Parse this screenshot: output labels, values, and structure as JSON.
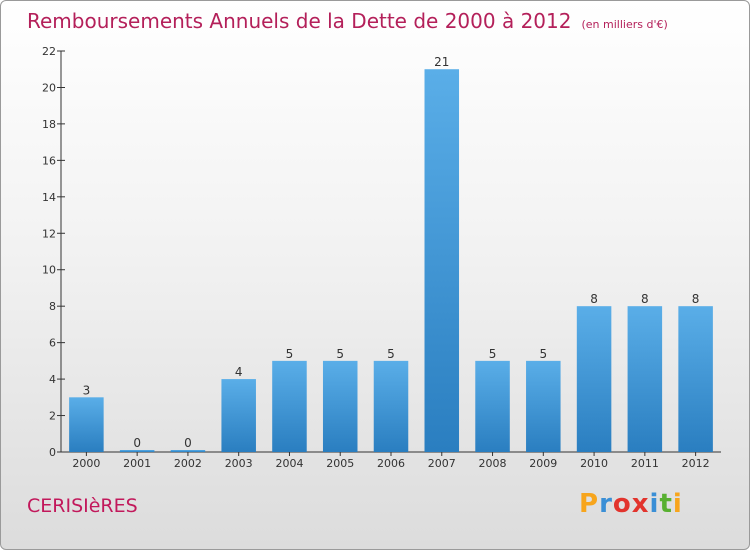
{
  "header": {
    "title": "Remboursements Annuels de la Dette de 2000 à 2012",
    "unit": "(en milliers d'€)"
  },
  "footer": {
    "commune": "CERISIèRES",
    "logo_letters": [
      "P",
      "r",
      "o",
      "x",
      "i",
      "t",
      "i"
    ],
    "logo_colors": [
      "#f7a51c",
      "#3a8fd6",
      "#e2342d",
      "#e2342d",
      "#3a8fd6",
      "#58b031",
      "#f7a51c"
    ]
  },
  "colors": {
    "bar_top": "#5aaee8",
    "bar_bottom": "#2a7ec0",
    "axis": "#333333"
  },
  "chart_data": {
    "type": "bar",
    "title": "Remboursements Annuels de la Dette de 2000 à 2012",
    "subtitle": "(en milliers d'€)",
    "categories": [
      "2000",
      "2001",
      "2002",
      "2003",
      "2004",
      "2005",
      "2006",
      "2007",
      "2008",
      "2009",
      "2010",
      "2011",
      "2012"
    ],
    "values": [
      3,
      0,
      0,
      4,
      5,
      5,
      5,
      21,
      5,
      5,
      8,
      8,
      8
    ],
    "ylim": [
      0,
      22
    ],
    "yticks": [
      0,
      2,
      4,
      6,
      8,
      10,
      12,
      14,
      16,
      18,
      20,
      22
    ],
    "xlabel": "",
    "ylabel": "",
    "grid": false,
    "legend": "none"
  }
}
